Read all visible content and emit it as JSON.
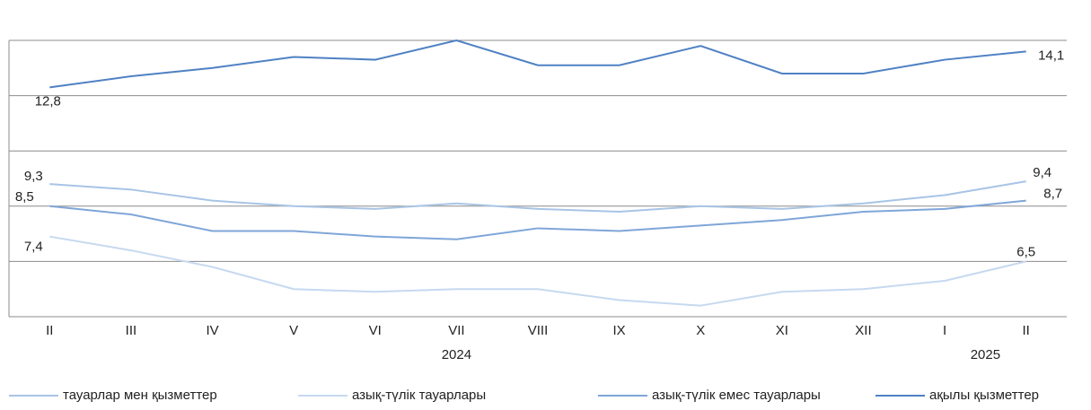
{
  "chart_data": {
    "type": "line",
    "categories": [
      "II",
      "III",
      "IV",
      "V",
      "VI",
      "VII",
      "VIII",
      "IX",
      "X",
      "XI",
      "XII",
      "I",
      "II"
    ],
    "x_groups": [
      {
        "label": "2024",
        "count": 11
      },
      {
        "label": "2025",
        "count": 2
      }
    ],
    "ylim": [
      4.5,
      14.5
    ],
    "yticks": [
      4.5,
      6.5,
      8.5,
      10.5,
      12.5,
      14.5
    ],
    "grid": true,
    "series": [
      {
        "name": "тауарлар мен қызметтер",
        "color": "#a8c4e5",
        "values": [
          9.3,
          9.1,
          8.7,
          8.5,
          8.4,
          8.6,
          8.4,
          8.3,
          8.5,
          8.4,
          8.6,
          8.9,
          9.4
        ],
        "value_labels": [
          "9,3",
          null,
          null,
          null,
          null,
          null,
          null,
          null,
          null,
          null,
          null,
          null,
          "9,4"
        ]
      },
      {
        "name": "азық-түлік тауарлары",
        "color": "#c6d9f0",
        "values": [
          7.4,
          6.9,
          6.3,
          5.5,
          5.4,
          5.5,
          5.5,
          5.1,
          4.9,
          5.4,
          5.5,
          5.8,
          6.5
        ],
        "value_labels": [
          "7,4",
          null,
          null,
          null,
          null,
          null,
          null,
          null,
          null,
          null,
          null,
          null,
          "6,5"
        ]
      },
      {
        "name": "азық-түлік емес тауарлары",
        "color": "#7fa6d8",
        "values": [
          8.5,
          8.2,
          7.6,
          7.6,
          7.4,
          7.3,
          7.7,
          7.6,
          7.8,
          8.0,
          8.3,
          8.4,
          8.7
        ],
        "value_labels": [
          "8,5",
          null,
          null,
          null,
          null,
          null,
          null,
          null,
          null,
          null,
          null,
          null,
          "8,7"
        ]
      },
      {
        "name": "ақылы қызметтер",
        "color": "#4f81c4",
        "values": [
          12.8,
          13.2,
          13.5,
          13.9,
          13.8,
          14.5,
          13.6,
          13.6,
          14.3,
          13.3,
          13.3,
          13.8,
          14.1
        ],
        "value_labels": [
          "12,8",
          null,
          null,
          null,
          null,
          null,
          null,
          null,
          null,
          null,
          null,
          null,
          "14,1"
        ]
      }
    ]
  }
}
